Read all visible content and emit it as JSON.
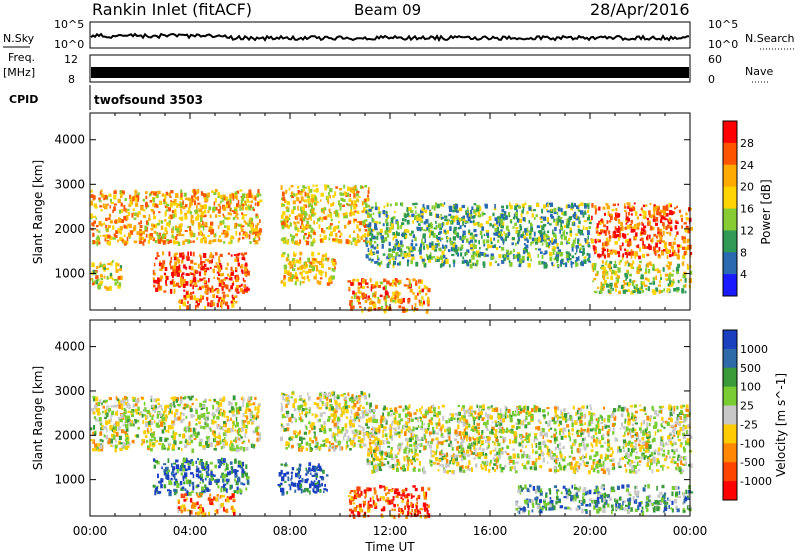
{
  "header": {
    "station": "Rankin Inlet (fitACF)",
    "beam": "Beam 09",
    "date": "28/Apr/2016"
  },
  "status_panels": {
    "nsky_label": "N.Sky",
    "nsky_ticks": [
      "10^5",
      "10^0"
    ],
    "nsearch_label": "N.Search",
    "nsearch_ticks": [
      "10^5",
      "10^0"
    ],
    "freq_label_1": "Freq.",
    "freq_label_2": "[MHz]",
    "freq_ticks": [
      "12",
      "8"
    ],
    "nave_label": "Nave",
    "nave_ticks": [
      "60",
      "0"
    ],
    "cpid_label": "CPID",
    "cpid_value": "twofsound 3503"
  },
  "x_axis": {
    "label": "Time UT",
    "ticks": [
      "00:00",
      "04:00",
      "08:00",
      "12:00",
      "16:00",
      "20:00",
      "00:00"
    ],
    "range_hours": [
      0,
      24
    ]
  },
  "chart_data": [
    {
      "type": "heatmap",
      "quantity": "Power",
      "xlabel": "Time UT",
      "ylabel": "Slant Range [km]",
      "xlim_hours": [
        0,
        24
      ],
      "ylim_km": [
        180,
        4600
      ],
      "yticks": [
        "1000",
        "2000",
        "3000",
        "4000"
      ],
      "colorbar": {
        "label": "Power [dB]",
        "ticks": [
          "28",
          "24",
          "20",
          "16",
          "12",
          "8",
          "4"
        ],
        "colors": [
          "#ff0000",
          "#ff5500",
          "#ffaa00",
          "#ffd400",
          "#88cc33",
          "#2e9a55",
          "#2a6ab0",
          "#1a1aff"
        ]
      },
      "regions": [
        {
          "t0": 0.0,
          "t1": 6.8,
          "r0": 1700,
          "r1": 2900,
          "level": 0.65
        },
        {
          "t0": 0.0,
          "t1": 1.2,
          "r0": 700,
          "r1": 1300,
          "level": 0.55
        },
        {
          "t0": 2.5,
          "t1": 6.3,
          "r0": 600,
          "r1": 1500,
          "level": 0.85
        },
        {
          "t0": 3.5,
          "t1": 5.8,
          "r0": 250,
          "r1": 600,
          "level": 0.8
        },
        {
          "t0": 7.6,
          "t1": 11.2,
          "r0": 1700,
          "r1": 3000,
          "level": 0.6
        },
        {
          "t0": 7.6,
          "t1": 9.8,
          "r0": 800,
          "r1": 1500,
          "level": 0.6
        },
        {
          "t0": 10.3,
          "t1": 13.5,
          "r0": 200,
          "r1": 900,
          "level": 0.7
        },
        {
          "t0": 11.0,
          "t1": 20.0,
          "r0": 1200,
          "r1": 2600,
          "level": 0.35
        },
        {
          "t0": 20.0,
          "t1": 24.0,
          "r0": 1400,
          "r1": 2600,
          "level": 0.8
        },
        {
          "t0": 20.0,
          "t1": 24.0,
          "r0": 600,
          "r1": 1300,
          "level": 0.5
        }
      ]
    },
    {
      "type": "heatmap",
      "quantity": "Velocity",
      "xlabel": "Time UT",
      "ylabel": "Slant Range [km]",
      "xlim_hours": [
        0,
        24
      ],
      "ylim_km": [
        180,
        4600
      ],
      "yticks": [
        "1000",
        "2000",
        "3000",
        "4000"
      ],
      "colorbar": {
        "label": "Velocity [m s^-1]",
        "ticks": [
          "1000",
          "500",
          "100",
          "25",
          "-25",
          "-100",
          "-500",
          "-1000"
        ],
        "colors": [
          "#1a3fbf",
          "#2e6aa8",
          "#3a9a3a",
          "#7acc33",
          "#c8c8c8",
          "#ffcc00",
          "#ff8800",
          "#ff4400",
          "#ff0000"
        ]
      },
      "regions": [
        {
          "t0": 0.0,
          "t1": 6.8,
          "r0": 1700,
          "r1": 2900,
          "level": 0.5
        },
        {
          "t0": 2.5,
          "t1": 6.3,
          "r0": 700,
          "r1": 1500,
          "level": 0.2
        },
        {
          "t0": 3.5,
          "t1": 5.8,
          "r0": 250,
          "r1": 700,
          "level": 0.75
        },
        {
          "t0": 7.5,
          "t1": 9.5,
          "r0": 700,
          "r1": 1400,
          "level": 0.08
        },
        {
          "t0": 7.6,
          "t1": 11.2,
          "r0": 1700,
          "r1": 3000,
          "level": 0.5
        },
        {
          "t0": 10.3,
          "t1": 13.5,
          "r0": 200,
          "r1": 900,
          "level": 0.8
        },
        {
          "t0": 11.0,
          "t1": 24.0,
          "r0": 1200,
          "r1": 2700,
          "level": 0.5
        },
        {
          "t0": 17.0,
          "t1": 24.0,
          "r0": 300,
          "r1": 900,
          "level": 0.3
        }
      ]
    }
  ]
}
